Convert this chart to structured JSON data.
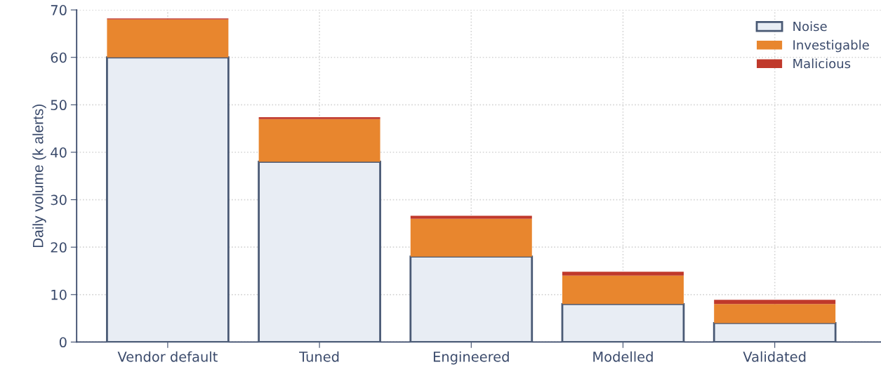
{
  "chart_data": {
    "type": "bar",
    "stacked": true,
    "ylabel": "Daily volume (k alerts)",
    "categories": [
      "Vendor default",
      "Tuned",
      "Engineered",
      "Modelled",
      "Validated"
    ],
    "series": [
      {
        "name": "Noise",
        "color": "#e8edf4",
        "values": [
          60,
          38,
          18,
          8,
          4
        ]
      },
      {
        "name": "Investigable",
        "color": "#e8862e",
        "values": [
          8,
          9,
          8,
          6,
          4
        ]
      },
      {
        "name": "Malicious",
        "color": "#c0392b",
        "values": [
          0.2,
          0.4,
          0.6,
          0.8,
          0.9
        ]
      }
    ],
    "ylim": [
      0,
      70
    ],
    "yticks": [
      0,
      10,
      20,
      30,
      40,
      50,
      60,
      70
    ],
    "grid": true,
    "legend": "top right"
  }
}
